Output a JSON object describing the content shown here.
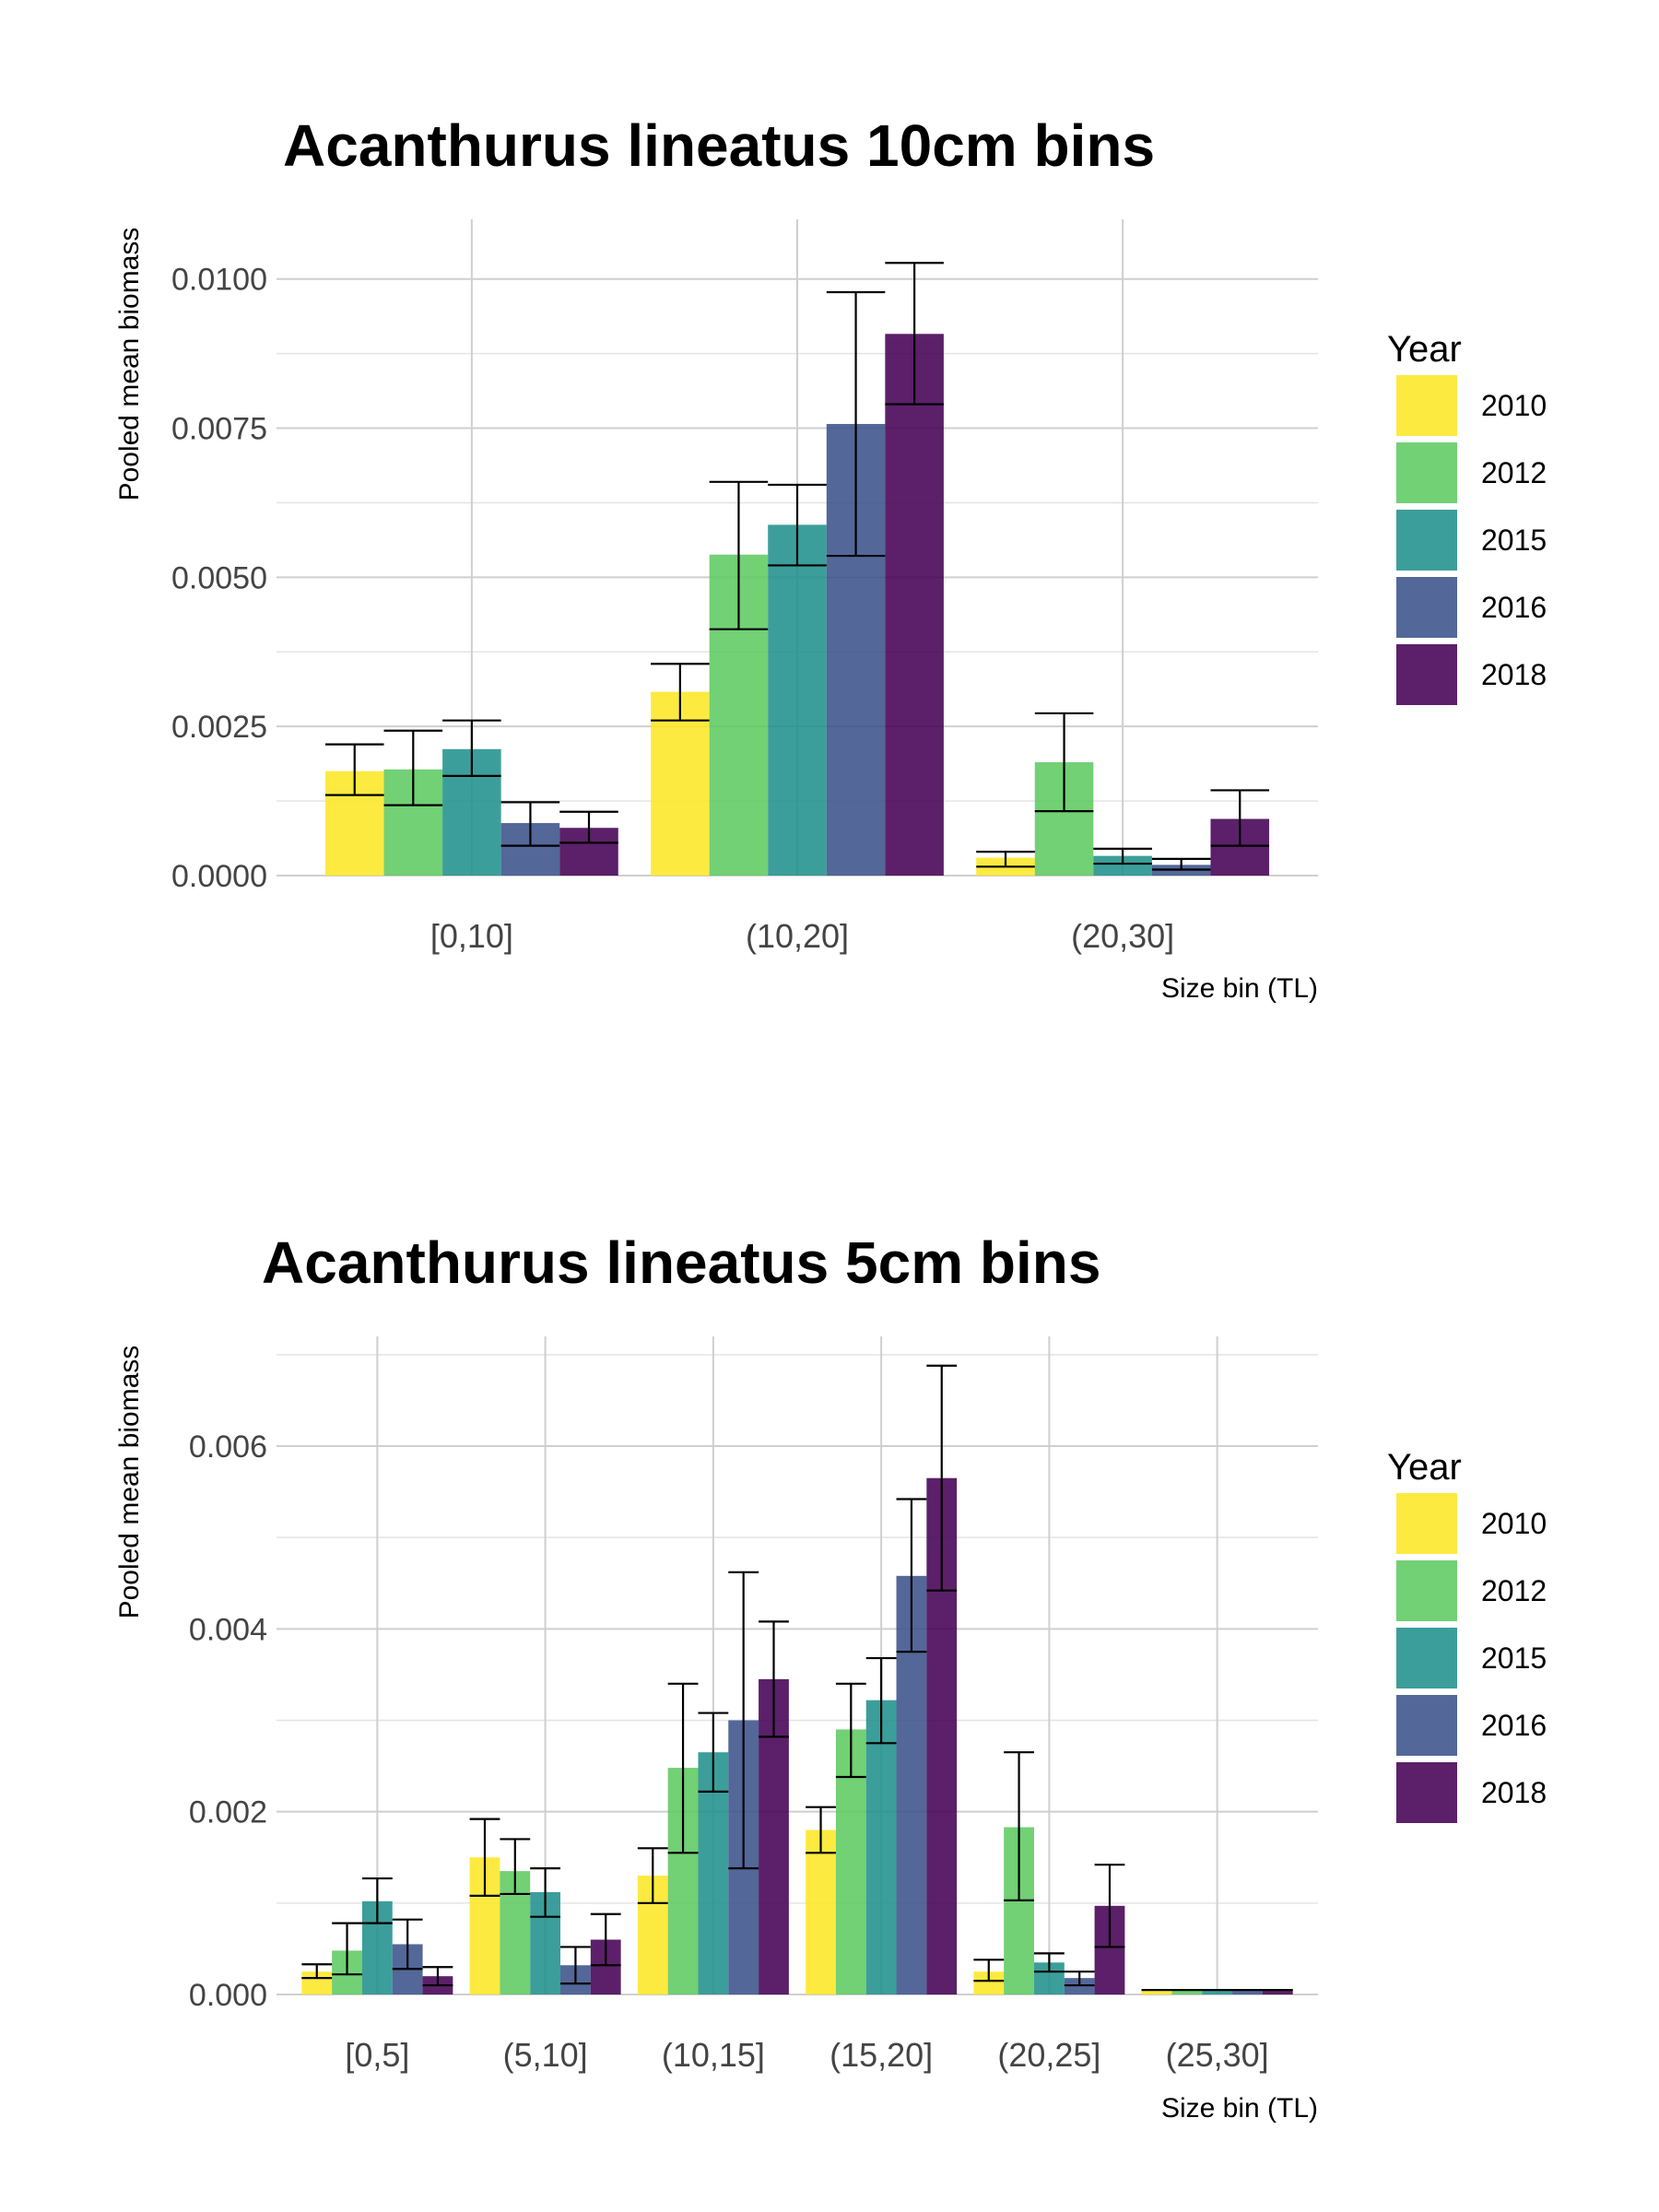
{
  "chart_data": [
    {
      "type": "bar",
      "title": "Acanthurus lineatus 10cm bins",
      "xlabel": "Size bin (TL)",
      "ylabel": "Pooled mean biomass",
      "categories": [
        "[0,10]",
        "(10,20]",
        "(20,30]"
      ],
      "ylim": [
        0,
        0.011
      ],
      "yticks": [
        "0.0000",
        "0.0025",
        "0.0050",
        "0.0075",
        "0.0100"
      ],
      "ytick_values": [
        0,
        0.0025,
        0.005,
        0.0075,
        0.01
      ],
      "grid": true,
      "legend": {
        "title": "Year",
        "position": "right"
      },
      "series": [
        {
          "name": "2010",
          "color": "#fde725",
          "values": [
            0.00175,
            0.00308,
            0.0003
          ],
          "err_low": [
            0.00135,
            0.0026,
            0.00015
          ],
          "err_high": [
            0.0022,
            0.00355,
            0.0004
          ]
        },
        {
          "name": "2012",
          "color": "#5ec962",
          "values": [
            0.00178,
            0.00538,
            0.0019
          ],
          "err_low": [
            0.00118,
            0.00413,
            0.00108
          ],
          "err_high": [
            0.00243,
            0.0066,
            0.00272
          ]
        },
        {
          "name": "2015",
          "color": "#21918c",
          "values": [
            0.00212,
            0.00588,
            0.00033
          ],
          "err_low": [
            0.00167,
            0.0052,
            0.0002
          ],
          "err_high": [
            0.0026,
            0.00655,
            0.00045
          ]
        },
        {
          "name": "2016",
          "color": "#3b528b",
          "values": [
            0.00088,
            0.00757,
            0.00018
          ],
          "err_low": [
            0.0005,
            0.00536,
            0.0001
          ],
          "err_high": [
            0.00123,
            0.00978,
            0.00028
          ]
        },
        {
          "name": "2018",
          "color": "#440154",
          "values": [
            0.0008,
            0.00908,
            0.00095
          ],
          "err_low": [
            0.00055,
            0.0079,
            0.0005
          ],
          "err_high": [
            0.00107,
            0.01027,
            0.00143
          ]
        }
      ]
    },
    {
      "type": "bar",
      "title": "Acanthurus lineatus 5cm bins",
      "xlabel": "Size bin (TL)",
      "ylabel": "Pooled mean biomass",
      "categories": [
        "[0,5]",
        "(5,10]",
        "(10,15]",
        "(15,20]",
        "(20,25]",
        "(25,30]"
      ],
      "ylim": [
        0,
        0.0072
      ],
      "yticks": [
        "0.000",
        "0.002",
        "0.004",
        "0.006"
      ],
      "ytick_values": [
        0,
        0.002,
        0.004,
        0.006
      ],
      "grid": true,
      "legend": {
        "title": "Year",
        "position": "right"
      },
      "series": [
        {
          "name": "2010",
          "color": "#fde725",
          "values": [
            0.00025,
            0.0015,
            0.0013,
            0.0018,
            0.00025,
            5e-05
          ],
          "err_low": [
            0.00018,
            0.00108,
            0.001,
            0.00155,
            0.00015,
            5e-05
          ],
          "err_high": [
            0.00033,
            0.00192,
            0.0016,
            0.00205,
            0.00038,
            5e-05
          ]
        },
        {
          "name": "2012",
          "color": "#5ec962",
          "values": [
            0.00048,
            0.00135,
            0.00248,
            0.0029,
            0.00183,
            5e-05
          ],
          "err_low": [
            0.00022,
            0.0011,
            0.00155,
            0.00238,
            0.00103,
            5e-05
          ],
          "err_high": [
            0.00078,
            0.0017,
            0.0034,
            0.0034,
            0.00265,
            5e-05
          ]
        },
        {
          "name": "2015",
          "color": "#21918c",
          "values": [
            0.00102,
            0.00112,
            0.00265,
            0.00322,
            0.00035,
            5e-05
          ],
          "err_low": [
            0.00078,
            0.00085,
            0.00222,
            0.00275,
            0.00025,
            5e-05
          ],
          "err_high": [
            0.00127,
            0.00138,
            0.00308,
            0.00368,
            0.00045,
            5e-05
          ]
        },
        {
          "name": "2016",
          "color": "#3b528b",
          "values": [
            0.00055,
            0.00032,
            0.003,
            0.00458,
            0.00018,
            5e-05
          ],
          "err_low": [
            0.00028,
            0.00012,
            0.00138,
            0.00375,
            0.0001,
            5e-05
          ],
          "err_high": [
            0.00082,
            0.00052,
            0.00462,
            0.00542,
            0.00025,
            5e-05
          ]
        },
        {
          "name": "2018",
          "color": "#440154",
          "values": [
            0.0002,
            0.0006,
            0.00345,
            0.00565,
            0.00097,
            5e-05
          ],
          "err_low": [
            0.0001,
            0.00032,
            0.00282,
            0.00442,
            0.00052,
            5e-05
          ],
          "err_high": [
            0.0003,
            0.00088,
            0.00408,
            0.00688,
            0.00142,
            5e-05
          ]
        }
      ]
    }
  ]
}
